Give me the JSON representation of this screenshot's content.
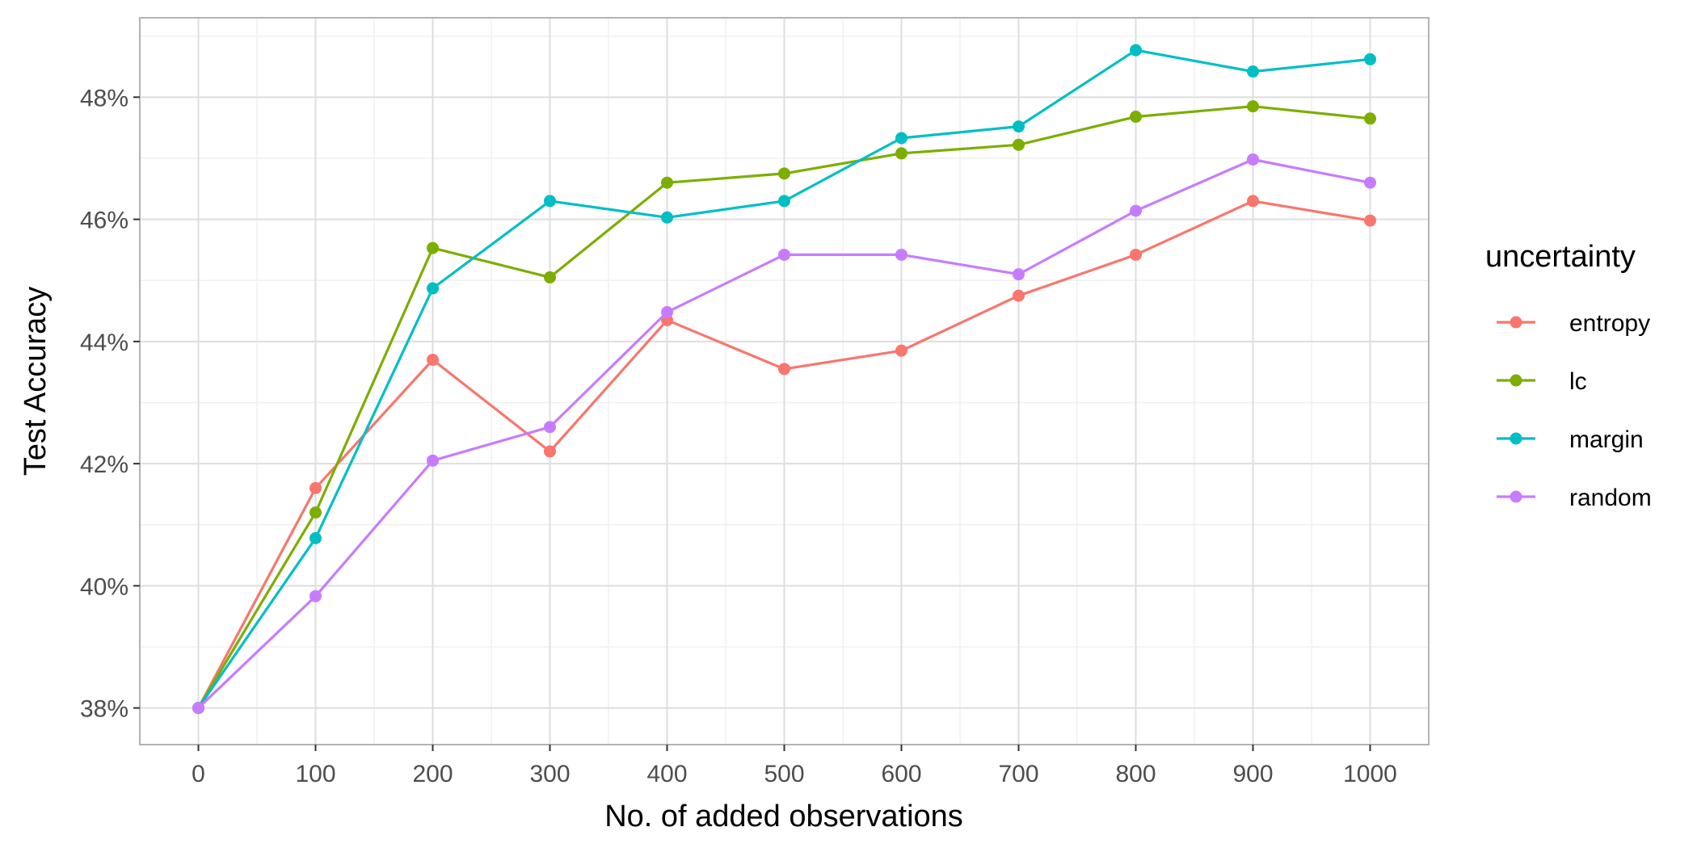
{
  "chart_data": {
    "type": "line",
    "title": "",
    "xlabel": "No. of added observations",
    "ylabel": "Test Accuracy",
    "x": [
      0,
      100,
      200,
      300,
      400,
      500,
      600,
      700,
      800,
      900,
      1000
    ],
    "xlim": [
      -50,
      1050
    ],
    "ylim": [
      37.4,
      49.3
    ],
    "x_ticks": [
      0,
      100,
      200,
      300,
      400,
      500,
      600,
      700,
      800,
      900,
      1000
    ],
    "y_ticks": [
      38,
      40,
      42,
      44,
      46,
      48
    ],
    "y_tick_format": "percent",
    "grid": true,
    "legend_title": "uncertainty",
    "legend_position": "right",
    "series": [
      {
        "name": "entropy",
        "color": "#F8766D",
        "values": [
          38.0,
          41.6,
          43.7,
          42.2,
          44.35,
          43.55,
          43.85,
          44.75,
          45.42,
          46.3,
          45.98
        ]
      },
      {
        "name": "lc",
        "color": "#7CAE00",
        "values": [
          38.0,
          41.2,
          45.53,
          45.05,
          46.6,
          46.75,
          47.08,
          47.22,
          47.68,
          47.85,
          47.65
        ]
      },
      {
        "name": "margin",
        "color": "#00BFC4",
        "values": [
          38.0,
          40.78,
          44.87,
          46.3,
          46.03,
          46.3,
          47.33,
          47.52,
          48.77,
          48.42,
          48.62
        ]
      },
      {
        "name": "random",
        "color": "#C77CFF",
        "values": [
          38.0,
          39.83,
          42.05,
          42.6,
          44.48,
          45.42,
          45.42,
          45.1,
          46.14,
          46.98,
          46.6
        ]
      }
    ]
  }
}
